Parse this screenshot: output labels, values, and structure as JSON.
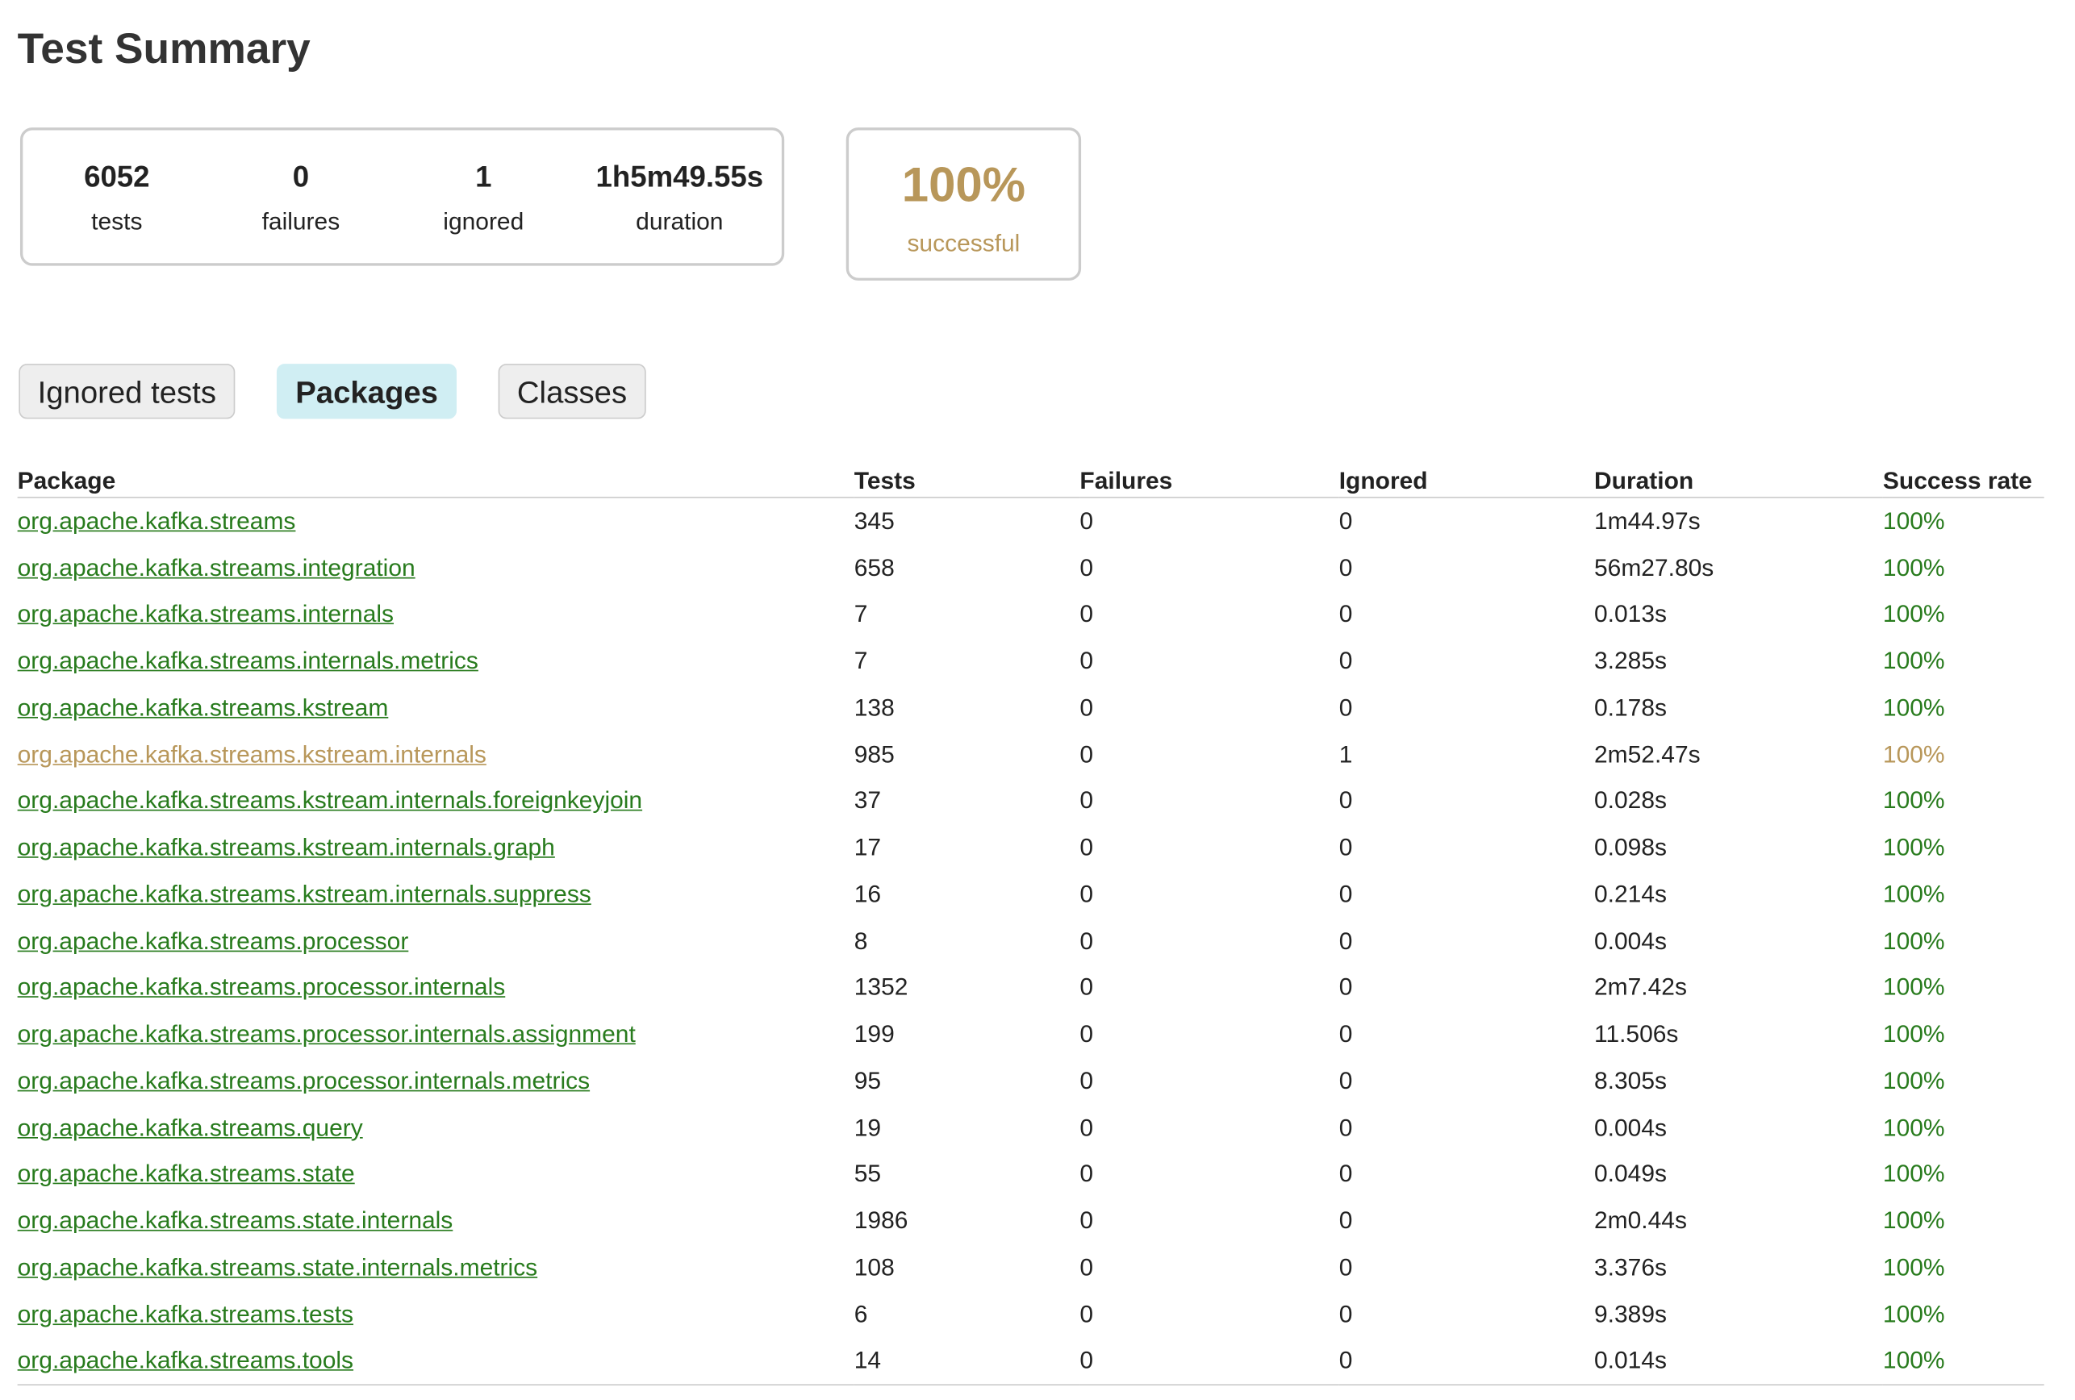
{
  "header": {
    "title": "Test Summary"
  },
  "summary": {
    "counters": [
      {
        "value": 6052,
        "label": "tests"
      },
      {
        "value": 0,
        "label": "failures"
      },
      {
        "value": 1,
        "label": "ignored"
      },
      {
        "value": "1h5m49.55s",
        "label": "duration"
      }
    ],
    "success": {
      "value": "100%",
      "label": "successful"
    }
  },
  "tabs": [
    "Ignored tests",
    "Packages",
    "Classes"
  ],
  "table": {
    "columns": [
      "Package",
      "Tests",
      "Failures",
      "Ignored",
      "Duration",
      "Success rate"
    ],
    "rows": [
      [
        "org.apache.kafka.streams",
        345,
        0,
        0,
        "1m44.97s",
        "100%"
      ],
      [
        "org.apache.kafka.streams.integration",
        658,
        0,
        0,
        "56m27.80s",
        "100%"
      ],
      [
        "org.apache.kafka.streams.internals",
        7,
        0,
        0,
        "0.013s",
        "100%"
      ],
      [
        "org.apache.kafka.streams.internals.metrics",
        7,
        0,
        0,
        "3.285s",
        "100%"
      ],
      [
        "org.apache.kafka.streams.kstream",
        138,
        0,
        0,
        "0.178s",
        "100%"
      ],
      [
        "org.apache.kafka.streams.kstream.internals",
        985,
        0,
        1,
        "2m52.47s",
        "100%"
      ],
      [
        "org.apache.kafka.streams.kstream.internals.foreignkeyjoin",
        37,
        0,
        0,
        "0.028s",
        "100%"
      ],
      [
        "org.apache.kafka.streams.kstream.internals.graph",
        17,
        0,
        0,
        "0.098s",
        "100%"
      ],
      [
        "org.apache.kafka.streams.kstream.internals.suppress",
        16,
        0,
        0,
        "0.214s",
        "100%"
      ],
      [
        "org.apache.kafka.streams.processor",
        8,
        0,
        0,
        "0.004s",
        "100%"
      ],
      [
        "org.apache.kafka.streams.processor.internals",
        1352,
        0,
        0,
        "2m7.42s",
        "100%"
      ],
      [
        "org.apache.kafka.streams.processor.internals.assignment",
        199,
        0,
        0,
        "11.506s",
        "100%"
      ],
      [
        "org.apache.kafka.streams.processor.internals.metrics",
        95,
        0,
        0,
        "8.305s",
        "100%"
      ],
      [
        "org.apache.kafka.streams.query",
        19,
        0,
        0,
        "0.004s",
        "100%"
      ],
      [
        "org.apache.kafka.streams.state",
        55,
        0,
        0,
        "0.049s",
        "100%"
      ],
      [
        "org.apache.kafka.streams.state.internals",
        1986,
        0,
        0,
        "2m0.44s",
        "100%"
      ],
      [
        "org.apache.kafka.streams.state.internals.metrics",
        108,
        0,
        0,
        "3.376s",
        "100%"
      ],
      [
        "org.apache.kafka.streams.tests",
        6,
        0,
        0,
        "9.389s",
        "100%"
      ],
      [
        "org.apache.kafka.streams.tools",
        14,
        0,
        0,
        "0.014s",
        "100%"
      ]
    ]
  }
}
